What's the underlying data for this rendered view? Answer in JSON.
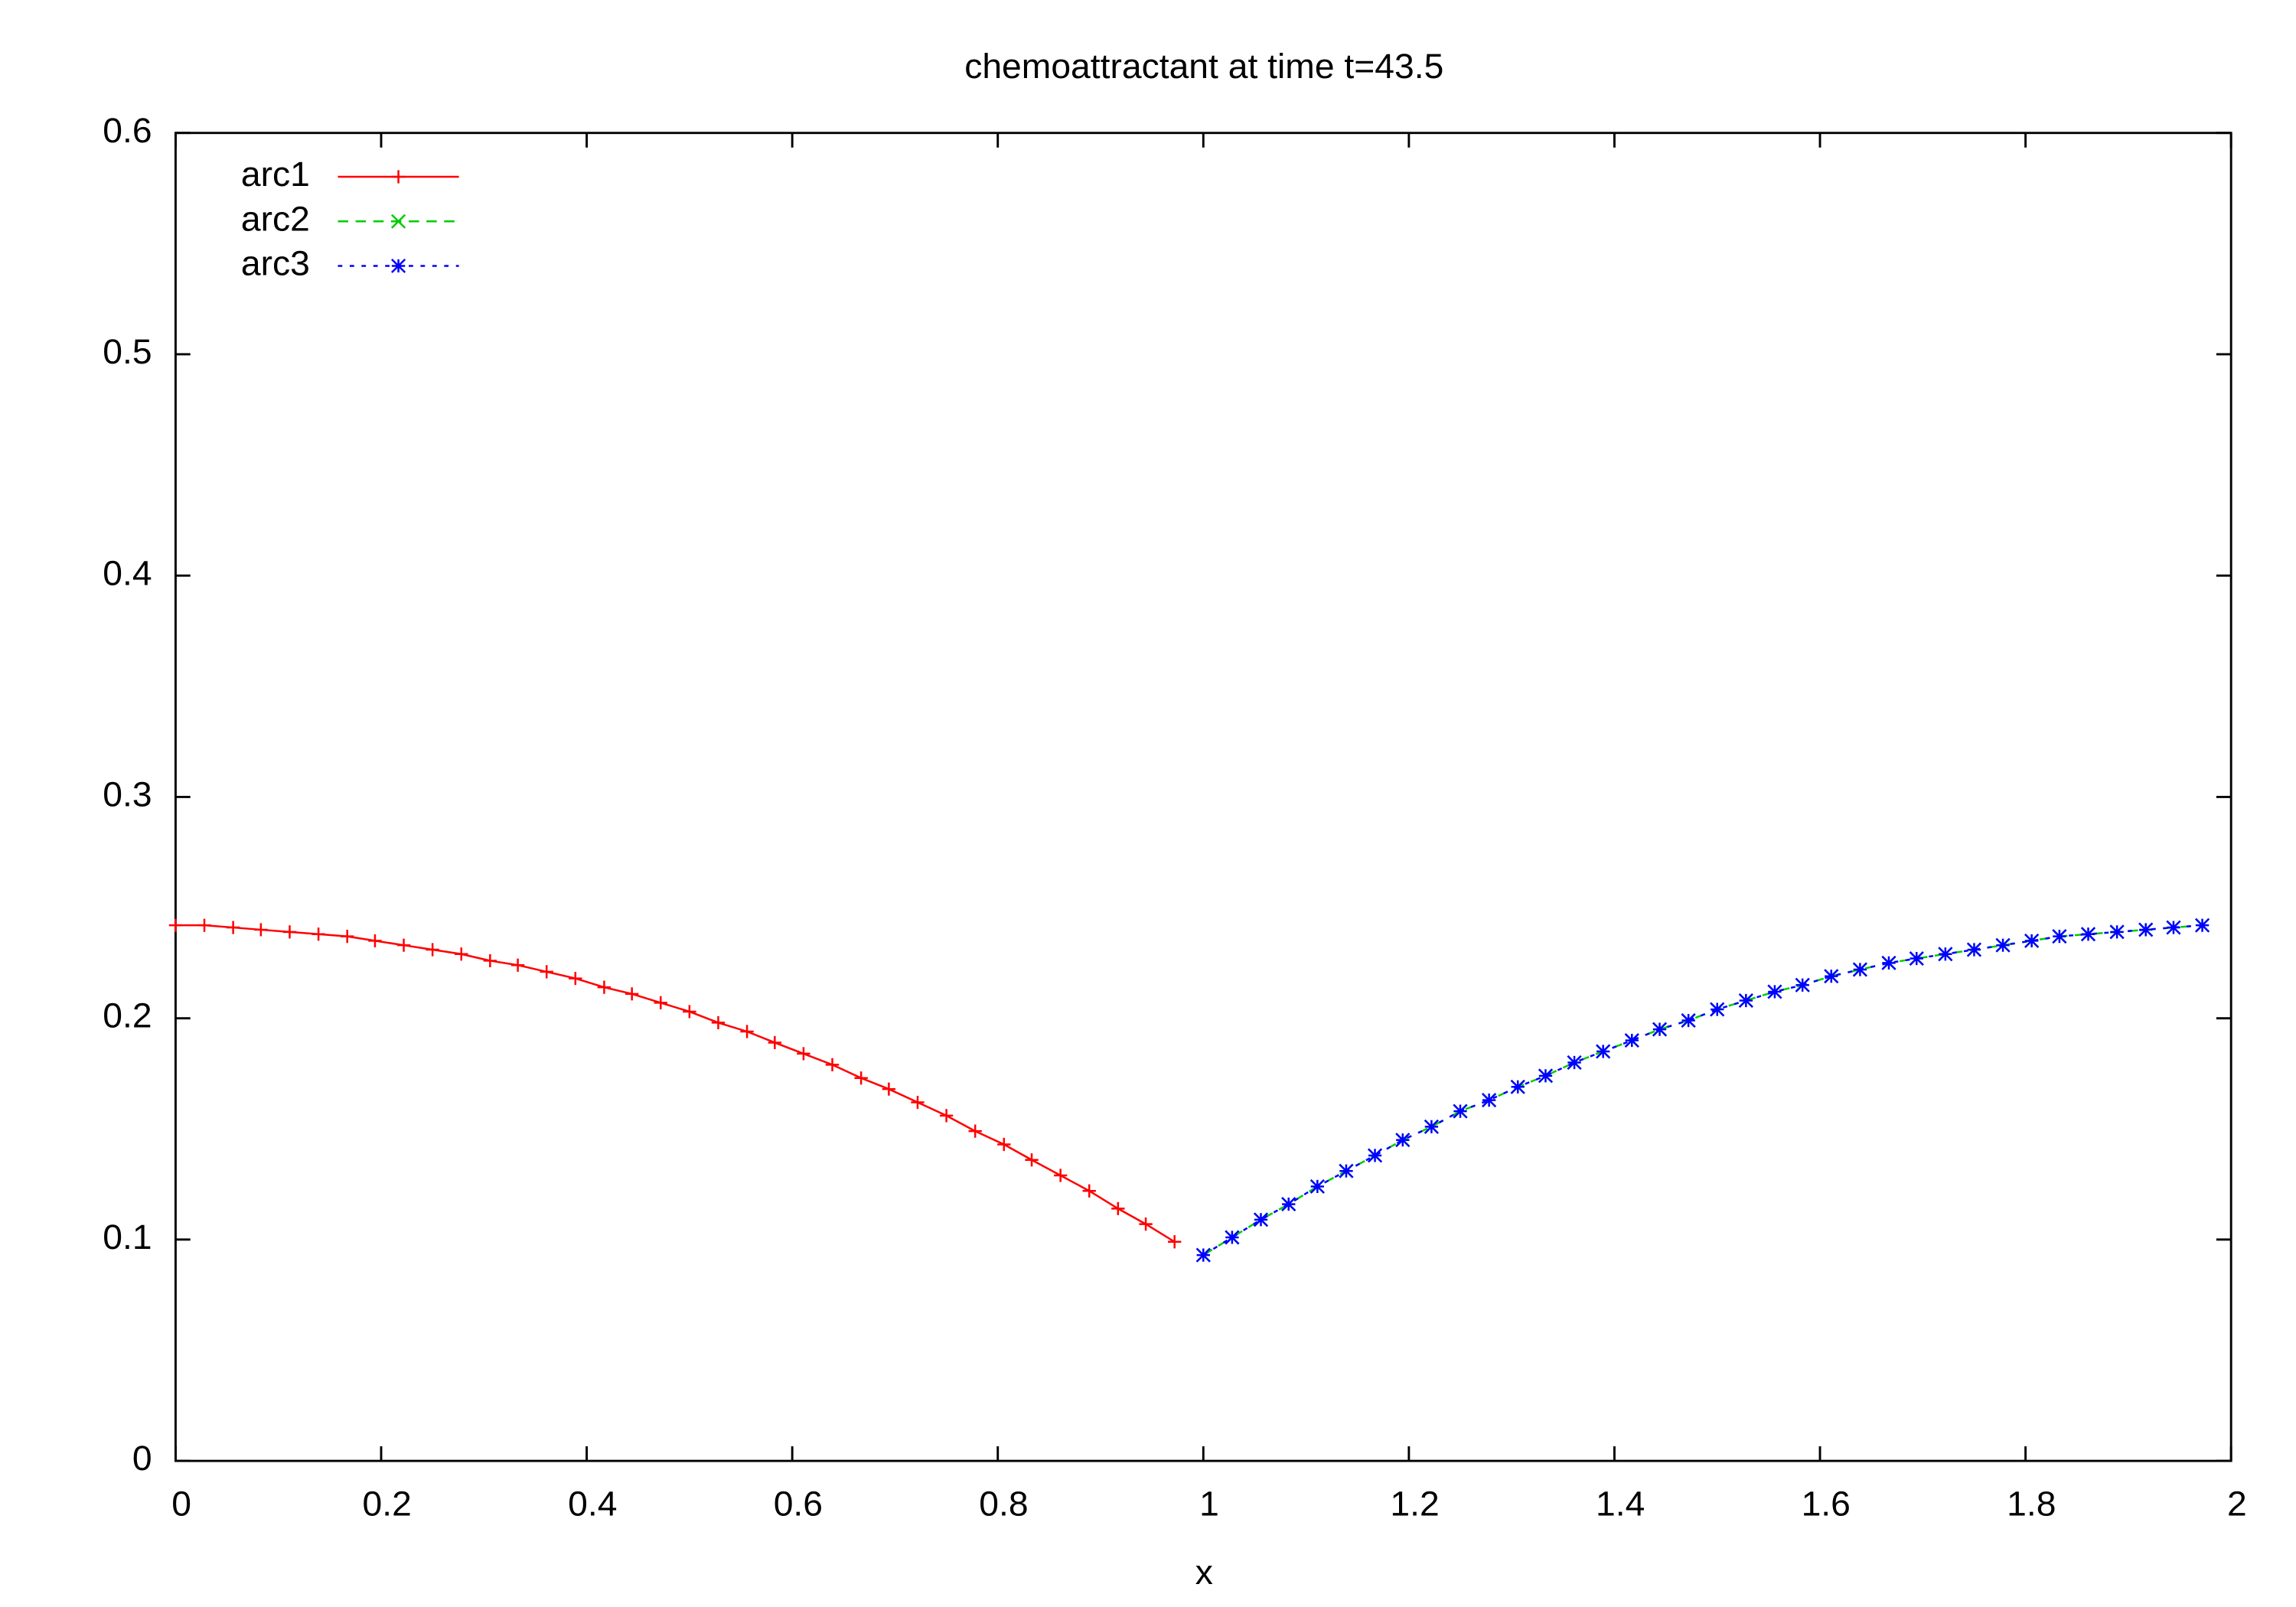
{
  "chart_data": {
    "type": "line",
    "title": "chemoattractant at time t=43.5",
    "xlabel": "x",
    "xlim": [
      0,
      2
    ],
    "xticks": [
      0,
      0.2,
      0.4,
      0.6,
      0.8,
      1,
      1.2,
      1.4,
      1.6,
      1.8,
      2
    ],
    "ylim": [
      0,
      0.6
    ],
    "yticks": [
      0,
      0.1,
      0.2,
      0.3,
      0.4,
      0.5,
      0.6
    ],
    "legend": "top-left",
    "series": [
      {
        "name": "arc1",
        "color": "#ff0000",
        "dash": "solid",
        "marker": "plus",
        "x": [
          0,
          0.028,
          0.056,
          0.083,
          0.111,
          0.139,
          0.167,
          0.194,
          0.222,
          0.25,
          0.278,
          0.306,
          0.333,
          0.361,
          0.389,
          0.417,
          0.444,
          0.472,
          0.5,
          0.528,
          0.556,
          0.583,
          0.611,
          0.639,
          0.667,
          0.694,
          0.722,
          0.75,
          0.778,
          0.806,
          0.833,
          0.861,
          0.889,
          0.917,
          0.944,
          0.972
        ],
        "values": [
          0.242,
          0.242,
          0.241,
          0.24,
          0.239,
          0.238,
          0.237,
          0.235,
          0.233,
          0.231,
          0.229,
          0.226,
          0.224,
          0.221,
          0.218,
          0.214,
          0.211,
          0.207,
          0.203,
          0.198,
          0.194,
          0.189,
          0.184,
          0.179,
          0.173,
          0.168,
          0.162,
          0.156,
          0.149,
          0.143,
          0.136,
          0.129,
          0.122,
          0.114,
          0.107,
          0.099
        ]
      },
      {
        "name": "arc2",
        "color": "#00cc00",
        "dash": "dashed",
        "marker": "cross",
        "x": [
          1,
          1.028,
          1.056,
          1.083,
          1.111,
          1.139,
          1.167,
          1.194,
          1.222,
          1.25,
          1.278,
          1.306,
          1.333,
          1.361,
          1.389,
          1.417,
          1.444,
          1.472,
          1.5,
          1.528,
          1.556,
          1.583,
          1.611,
          1.639,
          1.667,
          1.694,
          1.722,
          1.75,
          1.778,
          1.806,
          1.833,
          1.861,
          1.889,
          1.917,
          1.944,
          1.972
        ],
        "values": [
          0.093,
          0.101,
          0.109,
          0.116,
          0.124,
          0.131,
          0.138,
          0.145,
          0.151,
          0.158,
          0.163,
          0.169,
          0.174,
          0.18,
          0.185,
          0.19,
          0.195,
          0.199,
          0.204,
          0.208,
          0.212,
          0.215,
          0.219,
          0.222,
          0.225,
          0.227,
          0.229,
          0.231,
          0.233,
          0.235,
          0.237,
          0.238,
          0.239,
          0.24,
          0.241,
          0.242
        ]
      },
      {
        "name": "arc3",
        "color": "#0000ff",
        "dash": "dotted",
        "marker": "star",
        "x": [
          1,
          1.028,
          1.056,
          1.083,
          1.111,
          1.139,
          1.167,
          1.194,
          1.222,
          1.25,
          1.278,
          1.306,
          1.333,
          1.361,
          1.389,
          1.417,
          1.444,
          1.472,
          1.5,
          1.528,
          1.556,
          1.583,
          1.611,
          1.639,
          1.667,
          1.694,
          1.722,
          1.75,
          1.778,
          1.806,
          1.833,
          1.861,
          1.889,
          1.917,
          1.944,
          1.972
        ],
        "values": [
          0.093,
          0.101,
          0.109,
          0.116,
          0.124,
          0.131,
          0.138,
          0.145,
          0.151,
          0.158,
          0.163,
          0.169,
          0.174,
          0.18,
          0.185,
          0.19,
          0.195,
          0.199,
          0.204,
          0.208,
          0.212,
          0.215,
          0.219,
          0.222,
          0.225,
          0.227,
          0.229,
          0.231,
          0.233,
          0.235,
          0.237,
          0.238,
          0.239,
          0.24,
          0.241,
          0.242
        ]
      }
    ]
  }
}
